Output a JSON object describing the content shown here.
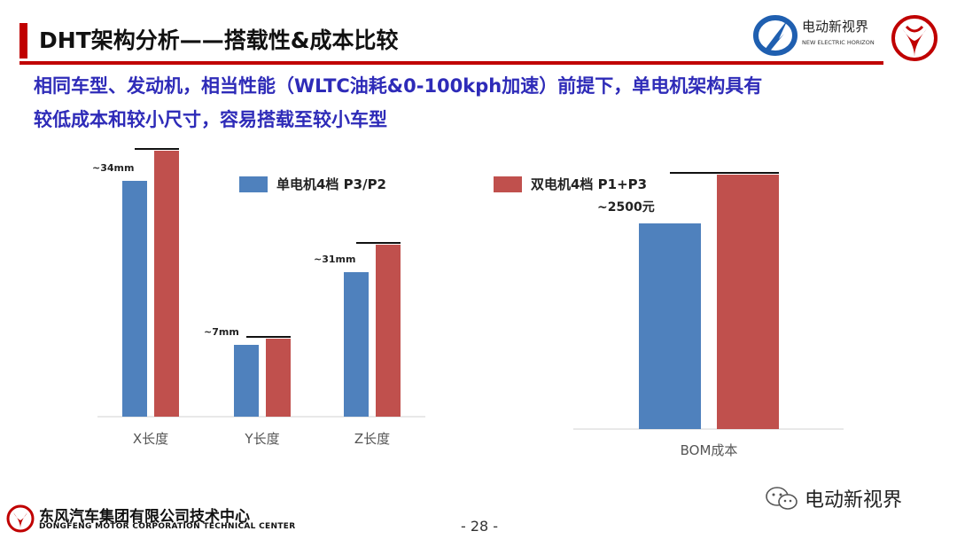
{
  "header": {
    "title": "DHT架构分析——搭载性&成本比较",
    "brand_text": "电动新视界",
    "brand_sub": "NEW ELECTRIC HORIZON",
    "accent_color": "#c00000"
  },
  "headline": {
    "line1": "相同车型、发动机，相当性能（WLTC油耗&0-100kph加速）前提下，单电机架构具有",
    "line2": "较低成本和较小尺寸，容易搭载至较小车型"
  },
  "legend": [
    {
      "label": "单电机4档 P3/P2",
      "color": "#4f81bd"
    },
    {
      "label": "双电机4档 P1+P3",
      "color": "#c0504d"
    }
  ],
  "chart_data": [
    {
      "type": "bar",
      "categories": [
        "X长度",
        "Y长度",
        "Z长度"
      ],
      "series": [
        {
          "name": "单电机4档 P3/P2",
          "values": [
            266,
            81,
            163
          ]
        },
        {
          "name": "双电机4档 P1+P3",
          "values": [
            300,
            88,
            194
          ]
        }
      ],
      "annotations": [
        "~34mm",
        "~7mm",
        "~31mm"
      ],
      "ylim": [
        0,
        320
      ]
    },
    {
      "type": "bar",
      "categories": [
        "BOM成本"
      ],
      "series": [
        {
          "name": "单电机4档 P3/P2",
          "values": [
            232
          ]
        },
        {
          "name": "双电机4档 P1+P3",
          "values": [
            287
          ]
        }
      ],
      "annotations": [
        "~2500元"
      ],
      "ylim": [
        0,
        320
      ]
    }
  ],
  "footer": {
    "company": "东风汽车集团有限公司技术中心",
    "company_en": "DONGFENG MOTOR CORPORATION TECHNICAL CENTER",
    "page": "- 28 -",
    "watermark": "电动新视界"
  }
}
